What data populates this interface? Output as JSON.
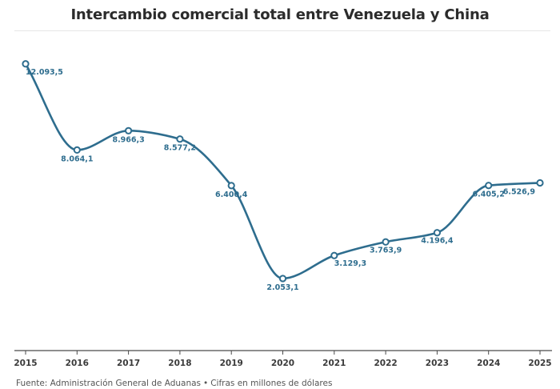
{
  "header": {
    "title": "Intercambio comercial total entre Venezuela y China"
  },
  "footer": {
    "source": "Fuente: Administración General de Aduanas",
    "separator": "•",
    "note": "Cifras en millones de dólares"
  },
  "colors": {
    "line": "#2e6d8e",
    "label": "#2e6d8e",
    "axis": "#4a4a4a",
    "axis_text": "#3a3a3a"
  },
  "chart_data": {
    "type": "line",
    "title": "Intercambio comercial total entre Venezuela y China",
    "xlabel": "",
    "ylabel": "",
    "x": [
      "2015",
      "2016",
      "2017",
      "2018",
      "2019",
      "2020",
      "2021",
      "2022",
      "2023",
      "2024",
      "2025"
    ],
    "values": [
      12093.5,
      8064.1,
      8966.3,
      8577.2,
      6400.4,
      2053.1,
      3129.3,
      3763.9,
      4196.4,
      6405.2,
      6526.9
    ],
    "labels": [
      "12.093,5",
      "8.064,1",
      "8.966,3",
      "8.577,2",
      "6.400,4",
      "2.053,1",
      "3.129,3",
      "3.763,9",
      "4.196,4",
      "6.405,2",
      "6.526,9"
    ],
    "grid": false,
    "smooth": true,
    "markers": "hollow-circle"
  }
}
